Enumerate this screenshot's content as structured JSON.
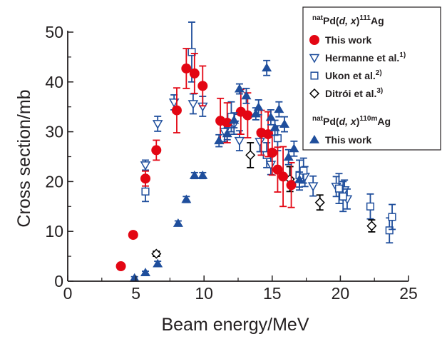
{
  "chart_data": {
    "type": "scatter",
    "xlabel": "Beam energy/MeV",
    "ylabel": "Cross section/mb",
    "xlim": [
      0,
      25
    ],
    "ylim": [
      0,
      50
    ],
    "xticks": [
      "0",
      "5",
      "10",
      "15",
      "20",
      "25"
    ],
    "yticks": [
      "0",
      "10",
      "20",
      "30",
      "40",
      "50"
    ],
    "grid": false,
    "legend_position": "top-right",
    "legend_headers": [
      {
        "sup": "nat",
        "pre": "Pd(",
        "italic": "d, x",
        "post": ")",
        "mass": "111",
        "element": "Ag"
      },
      {
        "sup": "nat",
        "pre": "Pd(",
        "italic": "d, x",
        "post": ")",
        "mass": "110m",
        "element": "Ag"
      }
    ],
    "series": [
      {
        "name": "This work",
        "group": "111Ag",
        "marker": "filled-circle",
        "color": "#e30613",
        "points": [
          {
            "x": 3.9,
            "y": 3.0,
            "err": 0.5
          },
          {
            "x": 4.8,
            "y": 9.3,
            "err": 0.6
          },
          {
            "x": 5.7,
            "y": 20.6,
            "err": 1.5
          },
          {
            "x": 6.5,
            "y": 26.3,
            "err": 2.0
          },
          {
            "x": 8.0,
            "y": 34.3,
            "err": 4.5
          },
          {
            "x": 8.7,
            "y": 42.7,
            "err": 4.0
          },
          {
            "x": 9.3,
            "y": 41.7,
            "err": 4.0
          },
          {
            "x": 9.9,
            "y": 39.2,
            "err": 4.0
          },
          {
            "x": 11.2,
            "y": 32.2,
            "err": 4.5
          },
          {
            "x": 11.7,
            "y": 31.8,
            "err": 4.0
          },
          {
            "x": 12.7,
            "y": 34.0,
            "err": 4.5
          },
          {
            "x": 13.2,
            "y": 33.3,
            "err": 4.5
          },
          {
            "x": 14.2,
            "y": 29.8,
            "err": 4.5
          },
          {
            "x": 14.7,
            "y": 29.5,
            "err": 4.5
          },
          {
            "x": 15.0,
            "y": 25.8,
            "err": 4.5
          },
          {
            "x": 15.4,
            "y": 22.4,
            "err": 4.5
          },
          {
            "x": 15.8,
            "y": 21.0,
            "err": 6.0
          },
          {
            "x": 16.4,
            "y": 19.3,
            "err": 4.5
          }
        ]
      },
      {
        "name": "Hermanne et al.",
        "ref": "1)",
        "group": "111Ag",
        "marker": "open-triangle-down",
        "color": "#1f4e9c",
        "points": [
          {
            "x": 5.7,
            "y": 23.3,
            "err": 1.0
          },
          {
            "x": 6.6,
            "y": 31.6,
            "err": 1.5
          },
          {
            "x": 7.8,
            "y": 35.9,
            "err": 1.5
          },
          {
            "x": 9.2,
            "y": 35.6,
            "err": 2.0
          },
          {
            "x": 9.9,
            "y": 35.1,
            "err": 2.0
          },
          {
            "x": 11.5,
            "y": 30.0,
            "err": 2.0
          },
          {
            "x": 12.2,
            "y": 31.5,
            "err": 2.0
          },
          {
            "x": 12.6,
            "y": 28.2,
            "err": 2.0
          },
          {
            "x": 14.1,
            "y": 28.0,
            "err": 2.0
          },
          {
            "x": 14.9,
            "y": 23.4,
            "err": 2.0
          },
          {
            "x": 17.4,
            "y": 21.0,
            "err": 2.0
          },
          {
            "x": 18.0,
            "y": 19.1,
            "err": 2.0
          },
          {
            "x": 19.7,
            "y": 19.0,
            "err": 2.0
          },
          {
            "x": 20.3,
            "y": 18.3,
            "err": 2.0
          },
          {
            "x": 20.5,
            "y": 16.5,
            "err": 2.0
          }
        ]
      },
      {
        "name": "Ukon et al.",
        "ref": "2)",
        "group": "111Ag",
        "marker": "open-square",
        "color": "#1f4e9c",
        "points": [
          {
            "x": 5.7,
            "y": 18.0,
            "err": 2.0
          },
          {
            "x": 9.1,
            "y": 46.0,
            "err": 6.0
          },
          {
            "x": 12.0,
            "y": 33.0,
            "err": 3.0
          },
          {
            "x": 14.6,
            "y": 25.3,
            "err": 2.5
          },
          {
            "x": 15.4,
            "y": 28.7,
            "err": 2.5
          },
          {
            "x": 17.0,
            "y": 21.3,
            "err": 3.0
          },
          {
            "x": 17.3,
            "y": 22.2,
            "err": 2.5
          },
          {
            "x": 19.9,
            "y": 18.6,
            "err": 3.0
          },
          {
            "x": 20.2,
            "y": 17.0,
            "err": 3.0
          },
          {
            "x": 22.2,
            "y": 15.0,
            "err": 2.5
          },
          {
            "x": 23.6,
            "y": 10.2,
            "err": 2.5
          },
          {
            "x": 23.8,
            "y": 12.9,
            "err": 2.5
          }
        ]
      },
      {
        "name": "Ditrói et al.",
        "ref": "3)",
        "group": "111Ag",
        "marker": "open-diamond",
        "color": "#000000",
        "points": [
          {
            "x": 6.5,
            "y": 5.5,
            "err": 0.5
          },
          {
            "x": 13.4,
            "y": 25.3,
            "err": 2.5
          },
          {
            "x": 16.3,
            "y": 20.5,
            "err": 2.5
          },
          {
            "x": 18.5,
            "y": 15.8,
            "err": 1.5
          },
          {
            "x": 22.3,
            "y": 11.1,
            "err": 1.2
          }
        ]
      },
      {
        "name": "This work",
        "group": "110mAg",
        "marker": "filled-triangle-up",
        "color": "#1f4e9c",
        "points": [
          {
            "x": 4.9,
            "y": 0.6,
            "err": 0.3
          },
          {
            "x": 5.7,
            "y": 1.7,
            "err": 0.3
          },
          {
            "x": 6.6,
            "y": 3.5,
            "err": 0.5
          },
          {
            "x": 8.1,
            "y": 11.6,
            "err": 0.5
          },
          {
            "x": 8.7,
            "y": 16.4,
            "err": 0.6
          },
          {
            "x": 9.3,
            "y": 21.2,
            "err": 0.6
          },
          {
            "x": 9.9,
            "y": 21.2,
            "err": 0.6
          },
          {
            "x": 11.1,
            "y": 28.2,
            "err": 1.2
          },
          {
            "x": 11.7,
            "y": 29.6,
            "err": 1.2
          },
          {
            "x": 12.2,
            "y": 32.3,
            "err": 1.5
          },
          {
            "x": 12.6,
            "y": 38.6,
            "err": 1.0
          },
          {
            "x": 13.1,
            "y": 37.2,
            "err": 1.5
          },
          {
            "x": 13.8,
            "y": 33.6,
            "err": 1.2
          },
          {
            "x": 14.0,
            "y": 34.9,
            "err": 1.5
          },
          {
            "x": 14.6,
            "y": 42.8,
            "err": 1.5
          },
          {
            "x": 14.9,
            "y": 32.9,
            "err": 1.5
          },
          {
            "x": 15.2,
            "y": 30.8,
            "err": 1.5
          },
          {
            "x": 15.5,
            "y": 34.5,
            "err": 1.5
          },
          {
            "x": 15.9,
            "y": 31.5,
            "err": 1.5
          },
          {
            "x": 16.2,
            "y": 24.9,
            "err": 1.5
          },
          {
            "x": 16.6,
            "y": 26.6,
            "err": 1.5
          },
          {
            "x": 17.0,
            "y": 20.4,
            "err": 1.5
          }
        ]
      }
    ]
  }
}
